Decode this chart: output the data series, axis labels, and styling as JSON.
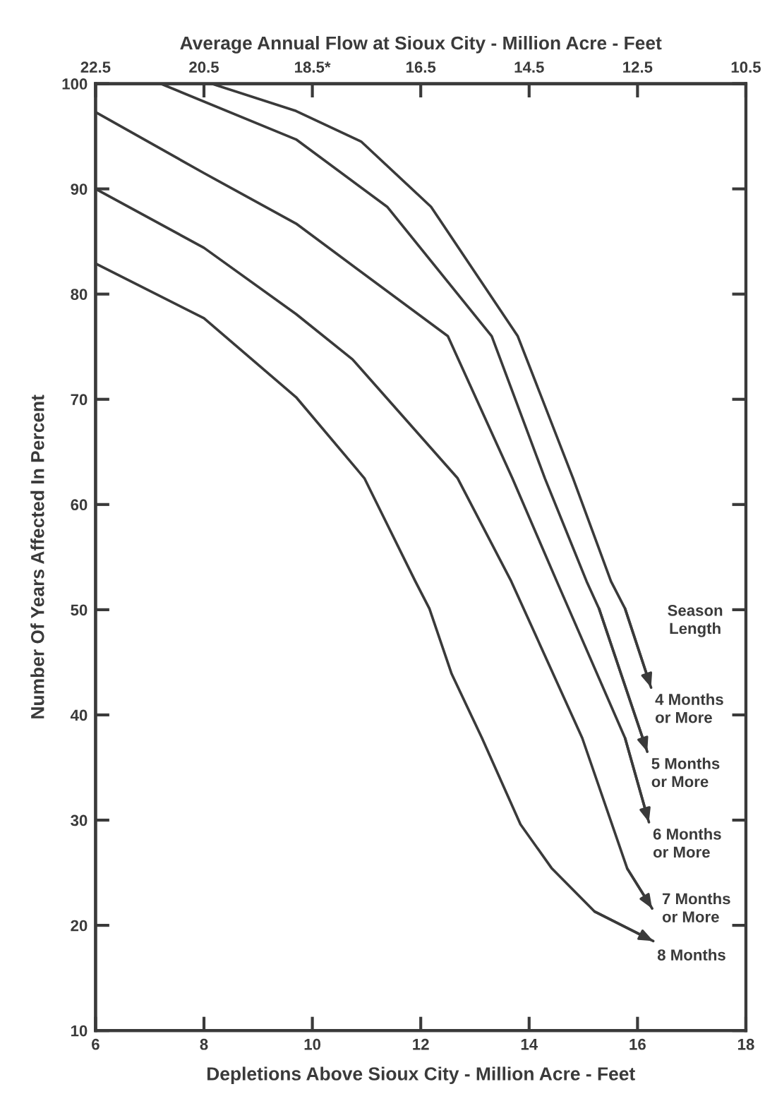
{
  "chart_data": {
    "type": "line",
    "xlabel": "Depletions Above Sioux City - Million Acre - Feet",
    "ylabel": "Number Of Years Affected In Percent",
    "x2label": "Average Annual Flow at Sioux City - Million Acre - Feet",
    "legend_title": "Season\nLength",
    "legend": "right",
    "xlim": [
      6,
      18
    ],
    "xticks": [
      6,
      8,
      10,
      12,
      14,
      16,
      18
    ],
    "ylim": [
      10,
      100
    ],
    "yticks": [
      10,
      20,
      30,
      40,
      50,
      60,
      70,
      80,
      90,
      100
    ],
    "x2lim": [
      22.5,
      10.5
    ],
    "x2ticks": [
      22.5,
      20.5,
      {
        "value": 18.5,
        "label": "18.5*"
      },
      16.5,
      14.5,
      12.5,
      10.5
    ],
    "grid": false,
    "marker": "none",
    "line_style": "solid",
    "series": [
      {
        "name": "4 Months\nor More",
        "color": "#3a3a3a",
        "x": [
          8.14,
          9.7,
          10.9,
          12.19,
          13.79,
          14.81,
          15.51,
          15.77,
          16.25
        ],
        "values": [
          100,
          97.4,
          94.5,
          88.3,
          76.0,
          62.5,
          52.7,
          50.1,
          42.6
        ]
      },
      {
        "name": "5 Months\nor More",
        "color": "#3a3a3a",
        "x": [
          7.2,
          9.7,
          11.38,
          13.31,
          14.29,
          15.06,
          15.29,
          16.18
        ],
        "values": [
          100,
          94.7,
          88.3,
          76.0,
          62.5,
          52.7,
          50.1,
          36.5
        ]
      },
      {
        "name": "6 Months\nor More",
        "color": "#3a3a3a",
        "x": [
          6.0,
          8.0,
          9.7,
          12.5,
          13.69,
          14.51,
          14.73,
          15.77,
          16.21
        ],
        "values": [
          97.3,
          91.5,
          86.7,
          76.0,
          62.5,
          52.7,
          50.1,
          37.8,
          29.8
        ]
      },
      {
        "name": "7 Months\nor More",
        "color": "#3a3a3a",
        "x": [
          6.0,
          8.0,
          9.7,
          10.74,
          12.68,
          13.67,
          14.98,
          15.81,
          16.27
        ],
        "values": [
          90,
          84.4,
          78.1,
          73.8,
          62.5,
          52.7,
          37.8,
          25.4,
          21.6
        ]
      },
      {
        "name": "8 Months",
        "color": "#3a3a3a",
        "x": [
          6.0,
          8.0,
          9.7,
          10.96,
          11.9,
          12.16,
          12.57,
          13.13,
          13.84,
          14.42,
          15.21,
          16.29
        ],
        "values": [
          82.9,
          77.7,
          70.2,
          62.5,
          52.7,
          50.1,
          43.9,
          37.8,
          29.6,
          25.4,
          21.3,
          18.5
        ]
      }
    ]
  }
}
